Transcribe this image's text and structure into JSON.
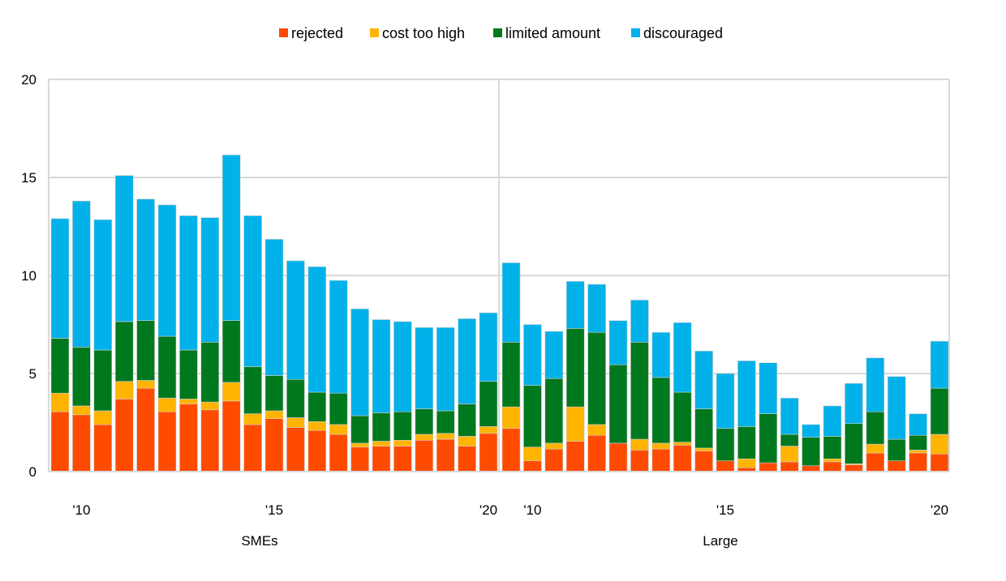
{
  "chart_data": {
    "type": "bar",
    "stacked": true,
    "title": "",
    "xlabel": "",
    "ylabel": "",
    "ylim": [
      0,
      20
    ],
    "yticks": [
      "0",
      "5",
      "10",
      "15",
      "20"
    ],
    "grid": true,
    "legend_position": "top-center",
    "groups": [
      {
        "name": "SMEs",
        "tick_labels": [
          {
            "bar": 1,
            "label": "'10"
          },
          {
            "bar": 10,
            "label": "'15"
          },
          {
            "bar": 20,
            "label": "'20"
          }
        ]
      },
      {
        "name": "Large",
        "tick_labels": [
          {
            "bar": 1,
            "label": "'10"
          },
          {
            "bar": 10,
            "label": "'15"
          },
          {
            "bar": 20,
            "label": "'20"
          }
        ]
      }
    ],
    "series": [
      {
        "name": "rejected",
        "color": "#ff4b00",
        "values": [
          [
            3.05,
            2.9,
            2.4,
            3.7,
            4.25,
            3.05,
            3.45,
            3.15,
            3.6,
            2.4,
            2.7,
            2.25,
            2.1,
            1.9,
            1.25,
            1.3,
            1.3,
            1.6,
            1.65,
            1.3,
            1.95
          ],
          [
            2.2,
            0.55,
            1.15,
            1.55,
            1.85,
            1.45,
            1.1,
            1.15,
            1.35,
            1.05,
            0.55,
            0.2,
            0.45,
            0.5,
            0.3,
            0.5,
            0.35,
            0.95,
            0.55,
            0.95,
            0.9
          ]
        ]
      },
      {
        "name": "cost too high",
        "color": "#ffb400",
        "values": [
          [
            0.95,
            0.45,
            0.7,
            0.9,
            0.4,
            0.7,
            0.25,
            0.4,
            0.95,
            0.55,
            0.4,
            0.5,
            0.45,
            0.5,
            0.2,
            0.25,
            0.3,
            0.3,
            0.3,
            0.5,
            0.35
          ],
          [
            1.1,
            0.7,
            0.3,
            1.75,
            0.55,
            0.0,
            0.55,
            0.3,
            0.15,
            0.15,
            0.0,
            0.45,
            0.0,
            0.8,
            0.0,
            0.15,
            0.05,
            0.45,
            0.0,
            0.15,
            1.0
          ]
        ]
      },
      {
        "name": "limited amount",
        "color": "#00781e",
        "values": [
          [
            2.8,
            3.0,
            3.1,
            3.05,
            3.05,
            3.15,
            2.5,
            3.05,
            3.15,
            2.4,
            1.8,
            1.95,
            1.5,
            1.6,
            1.4,
            1.45,
            1.45,
            1.3,
            1.15,
            1.65,
            2.3
          ],
          [
            3.3,
            3.15,
            3.3,
            4.0,
            4.7,
            4.0,
            4.95,
            3.35,
            2.55,
            2.0,
            1.65,
            1.65,
            2.5,
            0.6,
            1.45,
            1.15,
            2.05,
            1.65,
            1.1,
            0.75,
            2.35
          ]
        ]
      },
      {
        "name": "discouraged",
        "color": "#00b1ea",
        "values": [
          [
            6.1,
            7.45,
            6.65,
            7.45,
            6.2,
            6.7,
            6.85,
            6.35,
            8.45,
            7.7,
            6.95,
            6.05,
            6.4,
            5.75,
            5.45,
            4.75,
            4.6,
            4.15,
            4.25,
            4.35,
            3.5
          ],
          [
            4.05,
            3.1,
            2.4,
            2.4,
            2.45,
            2.25,
            2.15,
            2.3,
            3.55,
            2.95,
            2.8,
            3.35,
            2.6,
            1.85,
            0.65,
            1.55,
            2.05,
            2.75,
            3.2,
            1.1,
            2.4
          ]
        ]
      }
    ]
  }
}
